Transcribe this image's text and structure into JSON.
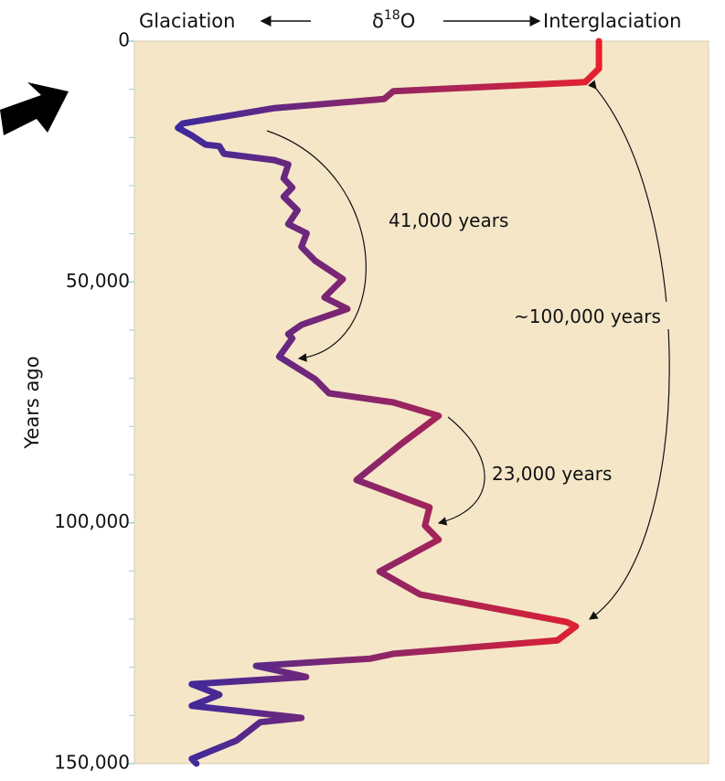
{
  "chart_data": {
    "type": "line",
    "orientation": "vertical",
    "header": {
      "left": "Glaciation",
      "symbol": "δ",
      "superscript": "18",
      "element": "O",
      "right": "Interglaciation"
    },
    "y_label": "Years ago",
    "ylim": [
      0,
      150000
    ],
    "yticks": [
      0,
      {
        "value": 50000,
        "label": "50,000"
      },
      {
        "value": 100000,
        "label": "100,000"
      },
      {
        "value": 150000,
        "label": "150,000"
      }
    ],
    "yminor_ticks": [
      10000,
      20000,
      30000,
      40000,
      60000,
      70000,
      80000,
      90000,
      110000,
      120000,
      130000,
      140000
    ],
    "xlim": [
      0,
      100
    ],
    "gradient": [
      "#3a2a9e",
      "#e8202c"
    ],
    "years": [
      0,
      5700,
      7600,
      8500,
      10400,
      12000,
      13900,
      17100,
      18000,
      19600,
      21500,
      21800,
      23400,
      24700,
      25600,
      28500,
      30400,
      32300,
      35100,
      38000,
      39900,
      42700,
      45600,
      49400,
      53200,
      55600,
      58900,
      60800,
      61700,
      65500,
      70200,
      73100,
      75000,
      77800,
      83500,
      91100,
      96800,
      100600,
      103500,
      110100,
      114900,
      120600,
      121500,
      124400,
      127200,
      128200,
      129700,
      132000,
      133500,
      135700,
      138000,
      140500,
      141400,
      145200,
      149000,
      150000
    ],
    "series": [
      {
        "values": [
          80.9,
          80.9,
          79.3,
          78.5,
          45.1,
          43.5,
          24.4,
          8.4,
          7.6,
          10.0,
          12.4,
          14.8,
          15.6,
          24.4,
          26.8,
          26.0,
          27.5,
          26.0,
          28.4,
          26.8,
          30.0,
          29.1,
          31.5,
          36.3,
          33.1,
          37.1,
          29.1,
          26.8,
          27.5,
          25.2,
          31.5,
          33.9,
          45.1,
          53.0,
          46.6,
          38.7,
          51.4,
          50.6,
          53.0,
          42.7,
          49.8,
          75.3,
          76.9,
          73.7,
          45.1,
          41.1,
          21.2,
          29.9,
          10.0,
          14.8,
          10.0,
          29.1,
          21.9,
          17.8,
          10.0,
          10.8
        ]
      }
    ],
    "annotations": [
      "41,000 years",
      "23,000 years",
      "~100,000 years"
    ]
  }
}
